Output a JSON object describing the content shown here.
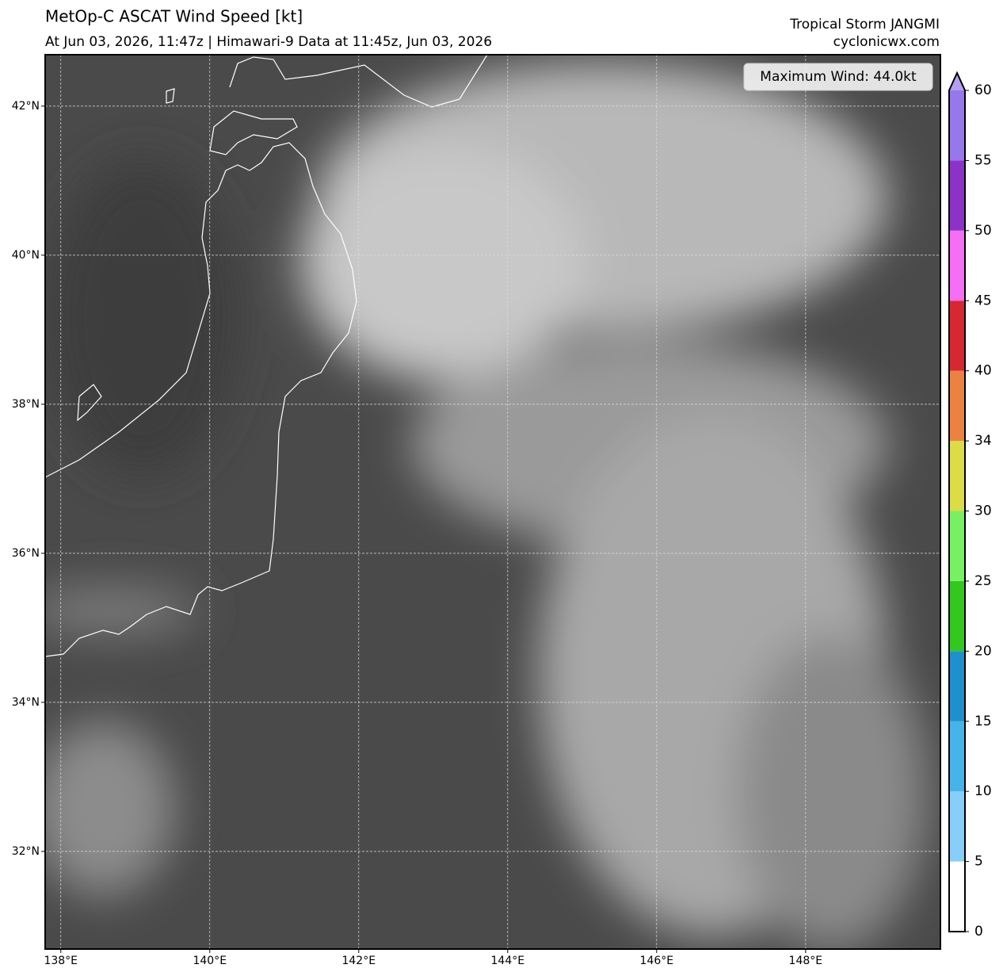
{
  "header": {
    "title": "MetOp-C ASCAT Wind Speed [kt]",
    "subtitle": "At Jun 03, 2026, 11:47z | Himawari-9 Data at 11:45z, Jun 03, 2026",
    "storm": "Tropical Storm JANGMI",
    "site": "cyclonicwx.com"
  },
  "map": {
    "type": "map",
    "xlim": [
      137.79,
      149.81
    ],
    "ylim": [
      30.69,
      42.69
    ],
    "grid": true,
    "xticks": [
      {
        "value": 138,
        "label": "138°E"
      },
      {
        "value": 140,
        "label": "140°E"
      },
      {
        "value": 142,
        "label": "142°E"
      },
      {
        "value": 144,
        "label": "144°E"
      },
      {
        "value": 146,
        "label": "146°E"
      },
      {
        "value": 148,
        "label": "148°E"
      }
    ],
    "yticks": [
      {
        "value": 32,
        "label": "32°N"
      },
      {
        "value": 34,
        "label": "34°N"
      },
      {
        "value": 36,
        "label": "36°N"
      },
      {
        "value": 38,
        "label": "38°N"
      },
      {
        "value": 40,
        "label": "40°N"
      },
      {
        "value": 42,
        "label": "42°N"
      }
    ],
    "max_wind_label": "Maximum Wind: 44.0kt"
  },
  "colorbar": {
    "levels": [
      0,
      5,
      10,
      15,
      20,
      25,
      30,
      34,
      40,
      45,
      50,
      55,
      60
    ],
    "colors": [
      "#ffffff",
      "#87cefa",
      "#46b4eb",
      "#1e90cd",
      "#32c81e",
      "#78f064",
      "#dcdc46",
      "#eb8241",
      "#d72832",
      "#f56ef5",
      "#8c32c8",
      "#9678eb"
    ],
    "extend_color": "#b4a0f0"
  }
}
